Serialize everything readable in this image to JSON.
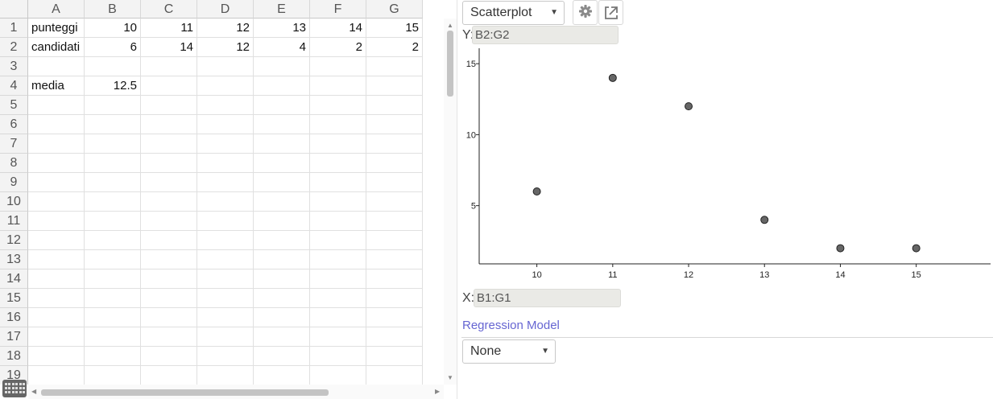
{
  "spreadsheet": {
    "columns": [
      "A",
      "B",
      "C",
      "D",
      "E",
      "F",
      "G"
    ],
    "rows": [
      "1",
      "2",
      "3",
      "4",
      "5",
      "6",
      "7",
      "8",
      "9",
      "10",
      "11",
      "12",
      "13",
      "14",
      "15",
      "16",
      "17",
      "18",
      "19"
    ],
    "cells": {
      "A1": "punteggi",
      "B1": "10",
      "C1": "11",
      "D1": "12",
      "E1": "13",
      "F1": "14",
      "G1": "15",
      "A2": "candidati",
      "B2": "6",
      "C2": "14",
      "D2": "12",
      "E2": "4",
      "F2": "2",
      "G2": "2",
      "A4": "media",
      "B4": "12.5"
    }
  },
  "panel": {
    "chart_type_select": "Scatterplot",
    "y_label": "Y:",
    "y_range": "B2:G2",
    "x_label": "X:",
    "x_range": "B1:G1",
    "regression_title": "Regression Model",
    "regression_select": "None",
    "settings_icon": "gear-icon",
    "open_external_icon": "external-link-icon"
  },
  "chart_data": {
    "type": "scatter",
    "title": "",
    "xlabel": "",
    "ylabel": "",
    "x": [
      10,
      11,
      12,
      13,
      14,
      15
    ],
    "y": [
      6,
      14,
      12,
      4,
      2,
      2
    ],
    "x_ticks": [
      "10",
      "11",
      "12",
      "13",
      "14",
      "15"
    ],
    "y_ticks": [
      "5",
      "10",
      "15"
    ],
    "xlim": [
      9.24,
      15.98
    ],
    "ylim": [
      0.9,
      16.2
    ],
    "grid": false,
    "point_color": "#666666"
  }
}
